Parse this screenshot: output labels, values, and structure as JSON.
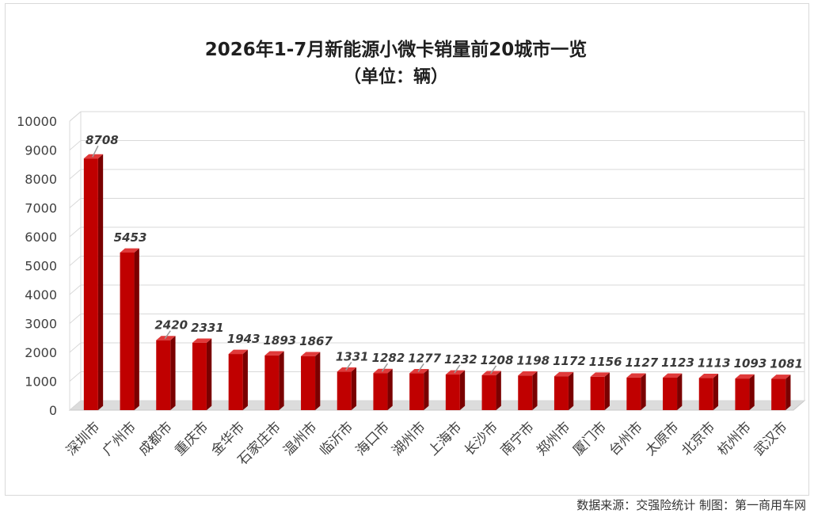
{
  "chart_data": {
    "type": "bar",
    "title": "2026年1-7月新能源小微卡销量前20城市一览",
    "subtitle": "（单位：辆）",
    "categories": [
      "深圳市",
      "广州市",
      "成都市",
      "重庆市",
      "金华市",
      "石家庄市",
      "温州市",
      "临沂市",
      "海口市",
      "湖州市",
      "上海市",
      "长沙市",
      "南宁市",
      "郑州市",
      "厦门市",
      "台州市",
      "太原市",
      "北京市",
      "杭州市",
      "武汉市"
    ],
    "values": [
      8708,
      5453,
      2420,
      2331,
      1943,
      1893,
      1867,
      1331,
      1282,
      1277,
      1232,
      1208,
      1198,
      1172,
      1156,
      1127,
      1123,
      1113,
      1093,
      1081
    ],
    "ylim": [
      0,
      10000
    ],
    "yticks": [
      0,
      1000,
      2000,
      3000,
      4000,
      5000,
      6000,
      7000,
      8000,
      9000,
      10000
    ],
    "grid": true,
    "legend": "none",
    "bar_color": "#c00000"
  },
  "source": "数据来源：交强险统计  制图：第一商用车网"
}
